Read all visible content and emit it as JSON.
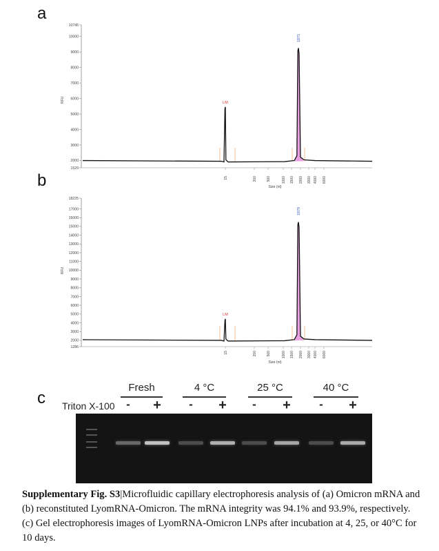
{
  "panels": {
    "a": "a",
    "b": "b",
    "c": "c"
  },
  "chart_data": [
    {
      "type": "line",
      "panel": "a",
      "ylabel": "RFU",
      "xlabel": "Size (nt)",
      "yticks": [
        1529,
        2000,
        3000,
        4000,
        5000,
        6000,
        7000,
        8000,
        9000,
        10000,
        10745
      ],
      "ylim": [
        1529,
        10745
      ],
      "xticks": [
        "15",
        "200",
        "500",
        "1000",
        "1500",
        "2000",
        "3000",
        "4000",
        "6000"
      ],
      "peaks": [
        {
          "label": "LM",
          "size_nt": 15,
          "rfu": 5450
        },
        {
          "label": "1871",
          "size_nt": 1871,
          "rfu": 9250
        }
      ],
      "baseline_rfu": 1950
    },
    {
      "type": "line",
      "panel": "b",
      "ylabel": "RFU",
      "xlabel": "Size (nt)",
      "yticks": [
        1286,
        2000,
        3000,
        4000,
        5000,
        6000,
        7000,
        8000,
        9000,
        10000,
        11000,
        12000,
        13000,
        14000,
        15000,
        16000,
        17000,
        18225
      ],
      "ylim": [
        1286,
        18225
      ],
      "xticks": [
        "15",
        "200",
        "500",
        "1000",
        "1500",
        "2000",
        "3000",
        "4000",
        "6000"
      ],
      "peaks": [
        {
          "label": "LM",
          "size_nt": 15,
          "rfu": 4450
        },
        {
          "label": "1879",
          "size_nt": 1879,
          "rfu": 15500
        }
      ],
      "baseline_rfu": 2000
    }
  ],
  "gel": {
    "conditions": [
      "Fresh",
      "4 °C",
      "25 °C",
      "40 °C"
    ],
    "row_label": "Triton X-100",
    "signs": [
      "-",
      "+",
      "-",
      "+",
      "-",
      "+",
      "-",
      "+"
    ],
    "band_intensity": [
      0.35,
      0.85,
      0.2,
      0.75,
      0.2,
      0.7,
      0.2,
      0.72
    ]
  },
  "caption": {
    "bold": "Supplementary Fig. S3",
    "text": "|Microfluidic capillary electrophoresis analysis of (a) Omicron mRNA and (b) reconstituted LyomRNA-Omicron. The mRNA integrity was 94.1% and 93.9%, respectively. (c) Gel electrophoresis images of LyomRNA-Omicron LNPs after incubation at 4, 25, or 40°C for 10 days."
  }
}
